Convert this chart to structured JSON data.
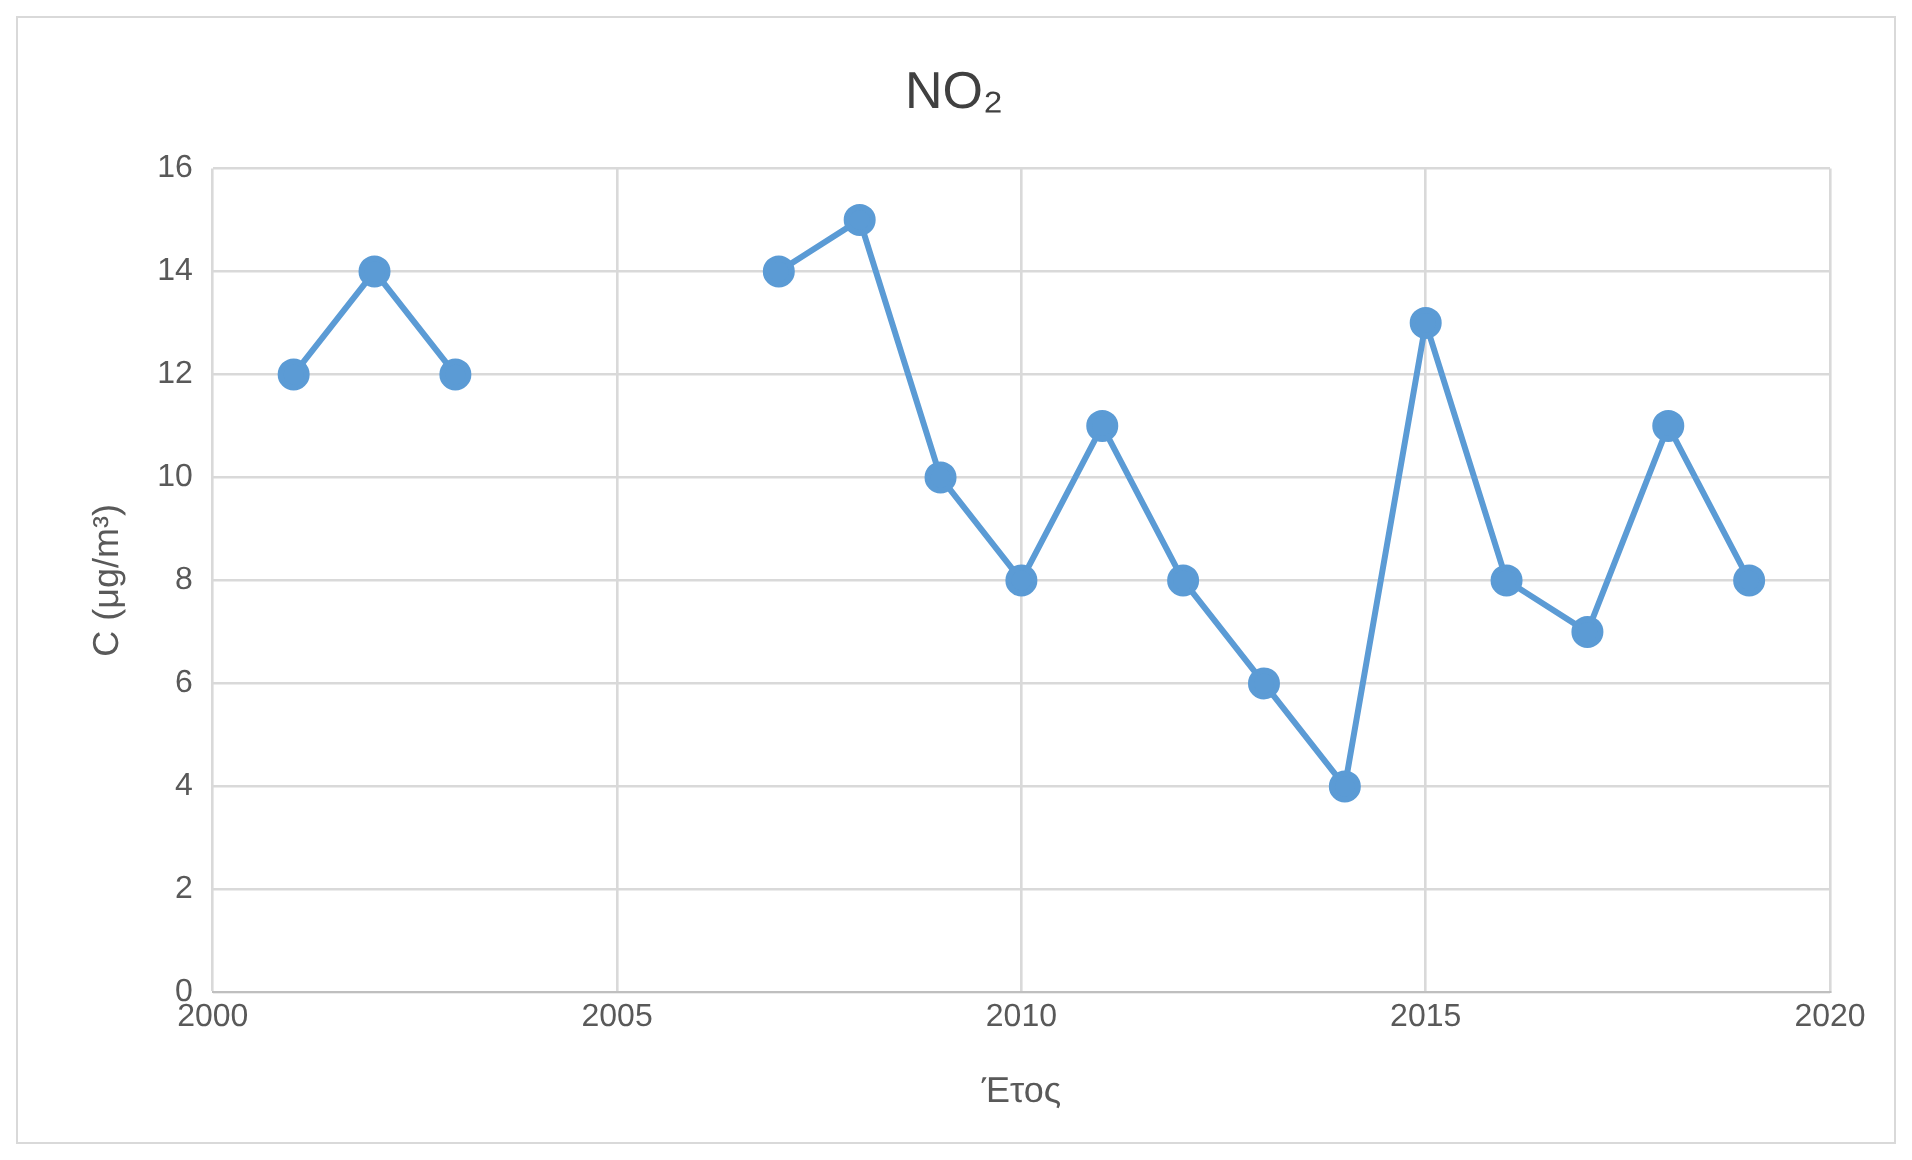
{
  "chart_data": {
    "type": "line",
    "title": "NO₂",
    "xlabel": "Έτος",
    "ylabel": "C (μg/m³)",
    "x": [
      2001,
      2002,
      2003,
      2004,
      2005,
      2006,
      2007,
      2008,
      2009,
      2010,
      2011,
      2012,
      2013,
      2014,
      2015,
      2016,
      2017,
      2018,
      2019
    ],
    "series": [
      {
        "color": "#5b9bd5",
        "values": [
          12,
          14,
          12,
          null,
          null,
          null,
          14,
          15,
          10,
          8,
          11,
          8,
          6,
          4,
          13,
          8,
          7,
          11,
          8
        ]
      }
    ],
    "xlim": [
      2000,
      2020
    ],
    "xticks": [
      2000,
      2005,
      2010,
      2015,
      2020
    ],
    "ylim": [
      0,
      16
    ],
    "yticks": [
      0,
      2,
      4,
      6,
      8,
      10,
      12,
      14,
      16
    ],
    "grid": true,
    "legend": false,
    "marker": "circle",
    "line_style": "solid"
  }
}
